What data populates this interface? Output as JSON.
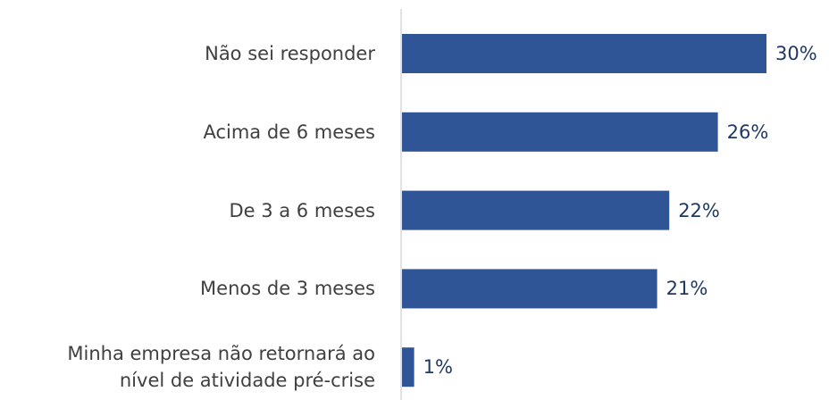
{
  "chart_data": {
    "type": "bar",
    "orientation": "horizontal",
    "categories": [
      "Não sei responder",
      "Acima de 6 meses",
      "De 3 a 6 meses",
      "Menos de 3 meses",
      "Minha empresa não retornará ao nível de atividade pré-crise"
    ],
    "values": [
      30,
      26,
      22,
      21,
      1
    ],
    "value_labels": [
      "30%",
      "26%",
      "22%",
      "21%",
      "1%"
    ],
    "color": "#2f5597"
  }
}
